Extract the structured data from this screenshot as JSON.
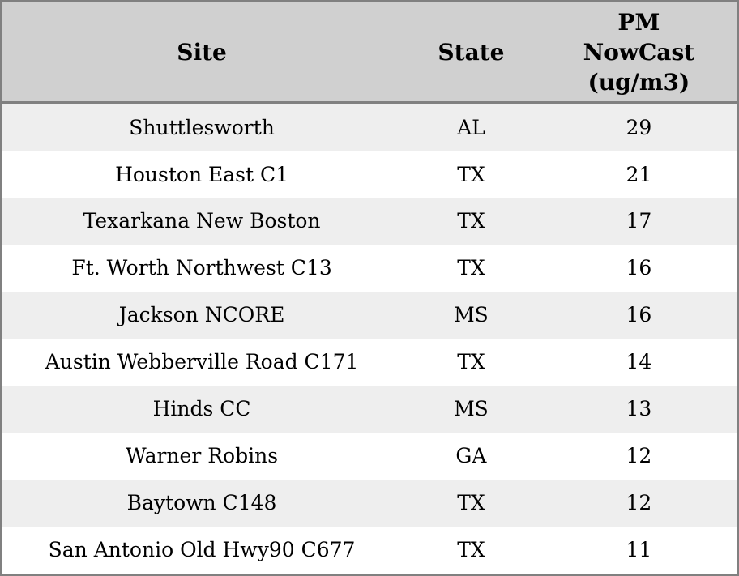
{
  "chart_data": {
    "type": "table",
    "columns": [
      "Site",
      "State",
      "PM NowCast (ug/m3)"
    ],
    "rows": [
      [
        "Shuttlesworth",
        "AL",
        "29"
      ],
      [
        "Houston East C1",
        "TX",
        "21"
      ],
      [
        "Texarkana New Boston",
        "TX",
        "17"
      ],
      [
        "Ft. Worth Northwest C13",
        "TX",
        "16"
      ],
      [
        "Jackson NCORE",
        "MS",
        "16"
      ],
      [
        "Austin Webberville Road C171",
        "TX",
        "14"
      ],
      [
        "Hinds CC",
        "MS",
        "13"
      ],
      [
        "Warner Robins",
        "GA",
        "12"
      ],
      [
        "Baytown C148",
        "TX",
        "12"
      ],
      [
        "San Antonio Old Hwy90 C677",
        "TX",
        "11"
      ]
    ]
  },
  "colors": {
    "header_bg": "#d0d0d0",
    "border": "#808080",
    "row_stripe": "#eeeeee",
    "row_plain": "#ffffff",
    "text": "#000000"
  }
}
